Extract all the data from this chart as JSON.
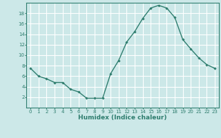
{
  "xlabel": "Humidex (Indice chaleur)",
  "ylabel": "",
  "x": [
    0,
    1,
    2,
    3,
    4,
    5,
    6,
    7,
    8,
    9,
    10,
    11,
    12,
    13,
    14,
    15,
    16,
    17,
    18,
    19,
    20,
    21,
    22,
    23
  ],
  "y": [
    7.5,
    6.0,
    5.5,
    4.8,
    4.8,
    3.5,
    3.0,
    1.8,
    1.8,
    1.8,
    6.5,
    9.0,
    12.5,
    14.5,
    17.0,
    19.0,
    19.5,
    19.0,
    17.2,
    13.0,
    11.2,
    9.5,
    8.2,
    7.5
  ],
  "line_color": "#2e7d6e",
  "marker": "D",
  "marker_size": 1.8,
  "line_width": 1.0,
  "background_color": "#cce8e8",
  "grid_color": "#ffffff",
  "xlim": [
    -0.5,
    23.5
  ],
  "ylim": [
    0,
    20
  ],
  "yticks": [
    2,
    4,
    6,
    8,
    10,
    12,
    14,
    16,
    18
  ],
  "xticks": [
    0,
    1,
    2,
    3,
    4,
    5,
    6,
    7,
    8,
    9,
    10,
    11,
    12,
    13,
    14,
    15,
    16,
    17,
    18,
    19,
    20,
    21,
    22,
    23
  ],
  "tick_color": "#2e7d6e",
  "tick_fontsize": 5.0,
  "xlabel_fontsize": 6.5,
  "xlabel_fontweight": "bold"
}
